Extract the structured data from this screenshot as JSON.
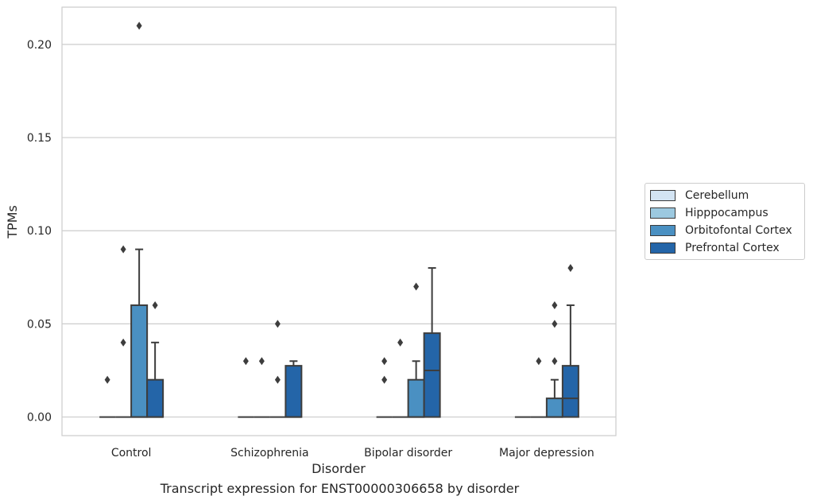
{
  "chart_data": {
    "type": "box",
    "title": "Transcript expression for ENST00000306658 by disorder",
    "xlabel": "Disorder",
    "ylabel": "TPMs",
    "categories": [
      "Control",
      "Schizophrenia",
      "Bipolar disorder",
      "Major depression"
    ],
    "ylim": [
      -0.01,
      0.22
    ],
    "yticks": [
      "0.00",
      "0.05",
      "0.10",
      "0.15",
      "0.20"
    ],
    "grid": true,
    "legend_position": "right",
    "series": [
      {
        "name": "Cerebellum",
        "color": "#d3e4f3",
        "boxes": [
          {
            "q1": 0,
            "median": 0,
            "q3": 0,
            "whisker_low": 0,
            "whisker_high": 0,
            "outliers": [
              0.02
            ]
          },
          {
            "q1": 0,
            "median": 0,
            "q3": 0,
            "whisker_low": 0,
            "whisker_high": 0,
            "outliers": [
              0.03
            ]
          },
          {
            "q1": 0,
            "median": 0,
            "q3": 0,
            "whisker_low": 0,
            "whisker_high": 0,
            "outliers": [
              0.02,
              0.03
            ]
          },
          {
            "q1": 0,
            "median": 0,
            "q3": 0,
            "whisker_low": 0,
            "whisker_high": 0,
            "outliers": []
          }
        ]
      },
      {
        "name": "Hipppocampus",
        "color": "#9cc9e0",
        "boxes": [
          {
            "q1": 0,
            "median": 0,
            "q3": 0,
            "whisker_low": 0,
            "whisker_high": 0,
            "outliers": [
              0.04,
              0.09
            ]
          },
          {
            "q1": 0,
            "median": 0,
            "q3": 0,
            "whisker_low": 0,
            "whisker_high": 0,
            "outliers": [
              0.03
            ]
          },
          {
            "q1": 0,
            "median": 0,
            "q3": 0,
            "whisker_low": 0,
            "whisker_high": 0,
            "outliers": [
              0.04
            ]
          },
          {
            "q1": 0,
            "median": 0,
            "q3": 0,
            "whisker_low": 0,
            "whisker_high": 0,
            "outliers": [
              0.03
            ]
          }
        ]
      },
      {
        "name": "Orbitofontal Cortex",
        "color": "#4a90c2",
        "boxes": [
          {
            "q1": 0,
            "median": 0,
            "q3": 0.06,
            "whisker_low": 0,
            "whisker_high": 0.09,
            "outliers": [
              0.21
            ]
          },
          {
            "q1": 0,
            "median": 0,
            "q3": 0,
            "whisker_low": 0,
            "whisker_high": 0,
            "outliers": [
              0.02,
              0.05
            ]
          },
          {
            "q1": 0,
            "median": 0,
            "q3": 0.02,
            "whisker_low": 0,
            "whisker_high": 0.03,
            "outliers": [
              0.07
            ]
          },
          {
            "q1": 0,
            "median": 0,
            "q3": 0.01,
            "whisker_low": 0,
            "whisker_high": 0.02,
            "outliers": [
              0.03,
              0.05,
              0.06
            ]
          }
        ]
      },
      {
        "name": "Prefrontal Cortex",
        "color": "#2465a8",
        "boxes": [
          {
            "q1": 0,
            "median": 0,
            "q3": 0.02,
            "whisker_low": 0,
            "whisker_high": 0.04,
            "outliers": [
              0.06
            ]
          },
          {
            "q1": 0,
            "median": 0,
            "q3": 0.0275,
            "whisker_low": 0,
            "whisker_high": 0.03,
            "outliers": []
          },
          {
            "q1": 0,
            "median": 0.025,
            "q3": 0.045,
            "whisker_low": 0,
            "whisker_high": 0.08,
            "outliers": []
          },
          {
            "q1": 0,
            "median": 0.01,
            "q3": 0.0275,
            "whisker_low": 0,
            "whisker_high": 0.06,
            "outliers": [
              0.08
            ]
          }
        ]
      }
    ]
  }
}
